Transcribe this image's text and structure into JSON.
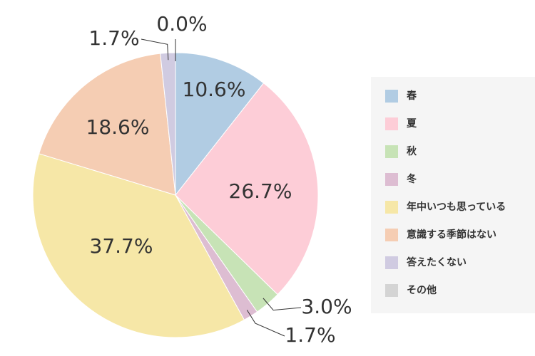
{
  "chart_data": {
    "type": "pie",
    "categories": [
      "春",
      "夏",
      "秋",
      "冬",
      "年中いつも思っている",
      "意識する季節はない",
      "答えたくない",
      "その他"
    ],
    "values": [
      10.6,
      26.7,
      3.0,
      1.7,
      37.7,
      18.6,
      1.7,
      0.0
    ],
    "value_labels": [
      "10.6%",
      "26.7%",
      "3.0%",
      "1.7%",
      "37.7%",
      "18.6%",
      "1.7%",
      "0.0%"
    ],
    "colors": [
      "#b1cce3",
      "#fdcdd7",
      "#c7e3b6",
      "#ddbdd2",
      "#f6e7a7",
      "#f5cdb3",
      "#d0cbe1",
      "#d4d4d4"
    ],
    "legend": "right"
  }
}
